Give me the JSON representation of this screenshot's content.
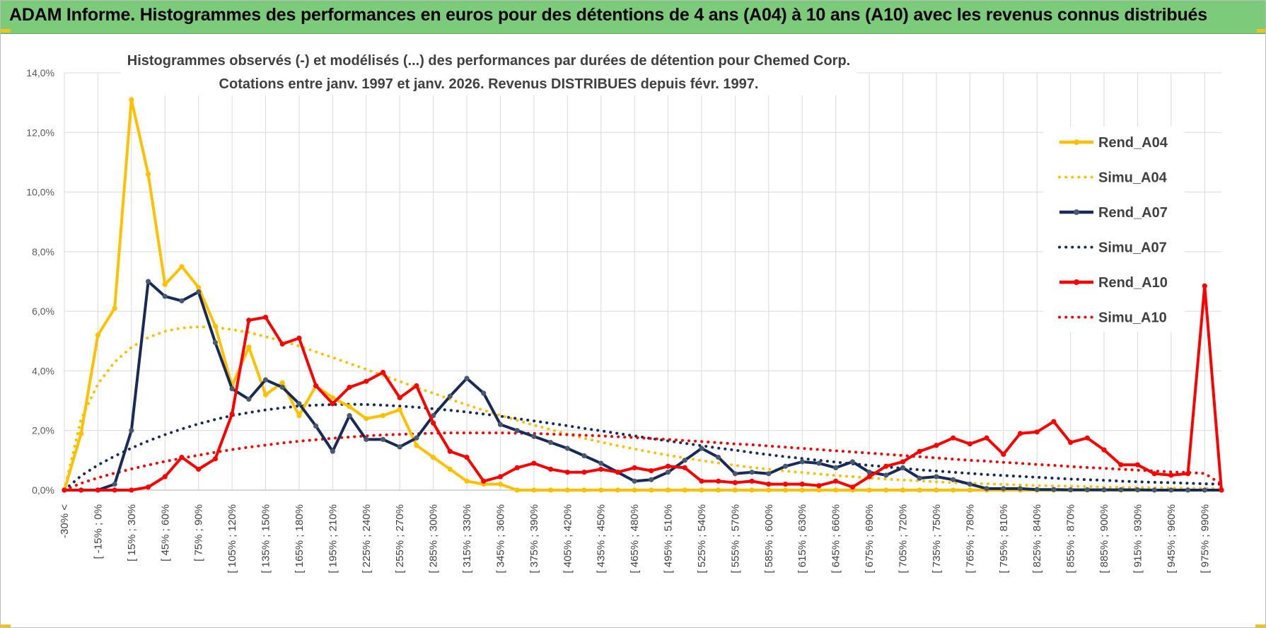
{
  "banner": {
    "title": "ADAM Informe. Histogrammes des performances en euros pour des détentions de 4 ans (A04) à 10 ans (A10) avec les revenus connus distribués"
  },
  "colors": {
    "banner_bg": "#7ccb7a",
    "A04": "#ffc000",
    "A07": "#172b5a",
    "A07_marker": "#4a5a6e",
    "A10": "#ff0000",
    "grid": "#d9d9d9"
  },
  "chart_data": {
    "type": "line",
    "title": "Histogrammes observés (-) et modélisés (...) des performances par durées de détention pour Chemed Corp.",
    "subtitle": "Cotations entre janv. 1997 et janv. 2026. Revenus DISTRIBUES depuis févr. 1997.",
    "xlabel": "",
    "ylabel": "",
    "ylim": [
      0,
      14
    ],
    "yticks": [
      "0,0%",
      "2,0%",
      "4,0%",
      "6,0%",
      "8,0%",
      "10,0%",
      "12,0%",
      "14,0%"
    ],
    "grid": true,
    "legend_position": "right",
    "tick_labels": [
      "-30% <",
      "[ -15% ; 0%",
      "[ 15% ; 30%",
      "[ 45% ; 60%",
      "[ 75% ; 90%",
      "[ 105% ; 120%",
      "[ 135% ; 150%",
      "[ 165% ; 180%",
      "[ 195% ; 210%",
      "[ 225% ; 240%",
      "[ 255% ; 270%",
      "[ 285% ; 300%",
      "[ 315% ; 330%",
      "[ 345% ; 360%",
      "[ 375% ; 390%",
      "[ 405% ; 420%",
      "[ 435% ; 450%",
      "[ 465% ; 480%",
      "[ 495% ; 510%",
      "[ 525% ; 540%",
      "[ 555% ; 570%",
      "[ 585% ; 600%",
      "[ 615% ; 630%",
      "[ 645% ; 660%",
      "[ 675% ; 690%",
      "[ 705% ; 720%",
      "[ 735% ; 750%",
      "[ 765% ; 780%",
      "[ 795% ; 810%",
      "[ 825% ; 840%",
      "[ 855% ; 870%",
      "[ 885% ; 900%",
      "[ 915% ; 930%",
      "[ 945% ; 960%",
      "[ 975% ; 990%"
    ],
    "bins": 70,
    "series": [
      {
        "name": "Rend_A04",
        "style": "solid",
        "color": "#ffc000",
        "markers": true,
        "values": [
          0,
          1.9,
          5.2,
          6.1,
          13.1,
          10.6,
          6.9,
          7.5,
          6.8,
          5.5,
          3.5,
          4.8,
          3.2,
          3.6,
          2.5,
          3.5,
          3.1,
          2.8,
          2.4,
          2.5,
          2.7,
          1.5,
          1.1,
          0.7,
          0.3,
          0.2,
          0.2,
          0,
          0,
          0,
          0,
          0,
          0,
          0,
          0,
          0,
          0,
          0,
          0,
          0,
          0,
          0,
          0,
          0,
          0,
          0,
          0,
          0,
          0,
          0,
          0,
          0,
          0,
          0,
          0,
          0,
          0,
          0,
          0,
          0,
          0,
          0,
          0,
          0,
          0,
          0,
          0,
          0,
          0,
          0
        ]
      },
      {
        "name": "Simu_A04",
        "style": "dotted",
        "color": "#ffc000",
        "values": [
          0,
          2.38,
          3.56,
          4.3,
          4.79,
          5.12,
          5.33,
          5.44,
          5.48,
          5.46,
          5.39,
          5.29,
          5.15,
          5.0,
          4.83,
          4.64,
          4.45,
          4.25,
          4.05,
          3.85,
          3.65,
          3.44,
          3.25,
          3.05,
          2.86,
          2.68,
          2.51,
          2.34,
          2.18,
          2.03,
          1.88,
          1.74,
          1.61,
          1.49,
          1.38,
          1.27,
          1.17,
          1.08,
          0.99,
          0.91,
          0.83,
          0.76,
          0.7,
          0.64,
          0.59,
          0.54,
          0.49,
          0.45,
          0.41,
          0.37,
          0.34,
          0.31,
          0.28,
          0.25,
          0.23,
          0.21,
          0.19,
          0.17,
          0.15,
          0.14,
          0.13,
          0.12,
          0.1,
          0.09,
          0.09,
          0.08,
          0.07,
          0.06,
          0.06,
          0.05
        ]
      },
      {
        "name": "Rend_A07",
        "style": "solid",
        "color": "#172b5a",
        "markers": true,
        "values": [
          0,
          0,
          0,
          0.2,
          2.0,
          7.0,
          6.5,
          6.35,
          6.65,
          4.95,
          3.4,
          3.05,
          3.7,
          3.45,
          2.9,
          2.15,
          1.3,
          2.5,
          1.7,
          1.7,
          1.45,
          1.75,
          2.5,
          3.15,
          3.75,
          3.25,
          2.2,
          2.0,
          1.8,
          1.6,
          1.4,
          1.15,
          0.9,
          0.6,
          0.3,
          0.35,
          0.6,
          1.0,
          1.4,
          1.1,
          0.55,
          0.6,
          0.55,
          0.8,
          0.95,
          0.9,
          0.75,
          0.95,
          0.6,
          0.5,
          0.75,
          0.4,
          0.45,
          0.35,
          0.2,
          0.05,
          0.05,
          0.05,
          0.02,
          0.02,
          0.01,
          0.01,
          0.01,
          0.01,
          0.01,
          0,
          0,
          0,
          0,
          0
        ]
      },
      {
        "name": "Simu_A07",
        "style": "dotted",
        "color": "#172b5a",
        "values": [
          0,
          0.48,
          0.84,
          1.14,
          1.41,
          1.65,
          1.86,
          2.05,
          2.22,
          2.37,
          2.5,
          2.6,
          2.69,
          2.76,
          2.82,
          2.85,
          2.87,
          2.88,
          2.87,
          2.85,
          2.82,
          2.78,
          2.73,
          2.68,
          2.62,
          2.55,
          2.48,
          2.4,
          2.32,
          2.24,
          2.16,
          2.07,
          1.99,
          1.9,
          1.82,
          1.73,
          1.65,
          1.57,
          1.49,
          1.41,
          1.34,
          1.26,
          1.19,
          1.12,
          1.06,
          1.0,
          0.94,
          0.88,
          0.83,
          0.78,
          0.73,
          0.68,
          0.64,
          0.6,
          0.56,
          0.52,
          0.49,
          0.46,
          0.43,
          0.4,
          0.37,
          0.35,
          0.33,
          0.3,
          0.28,
          0.26,
          0.25,
          0.23,
          0.21,
          0.2
        ]
      },
      {
        "name": "Rend_A10",
        "style": "solid",
        "color": "#ff0000",
        "markers": true,
        "values": [
          0,
          0,
          0,
          0,
          0,
          0.1,
          0.45,
          1.1,
          0.7,
          1.05,
          2.55,
          5.7,
          5.8,
          4.9,
          5.1,
          3.5,
          2.9,
          3.45,
          3.65,
          3.95,
          3.1,
          3.5,
          2.25,
          1.3,
          1.1,
          0.3,
          0.45,
          0.75,
          0.9,
          0.7,
          0.6,
          0.6,
          0.7,
          0.6,
          0.75,
          0.65,
          0.8,
          0.75,
          0.3,
          0.3,
          0.25,
          0.3,
          0.2,
          0.2,
          0.2,
          0.15,
          0.3,
          0.1,
          0.45,
          0.8,
          0.95,
          1.3,
          1.5,
          1.75,
          1.55,
          1.75,
          1.2,
          1.9,
          1.95,
          2.3,
          1.6,
          1.75,
          1.35,
          0.85,
          0.85,
          0.55,
          0.5,
          0.55,
          6.85,
          0
        ]
      },
      {
        "name": "Simu_A10",
        "style": "dotted",
        "color": "#ff0000",
        "values": [
          0,
          0.23,
          0.41,
          0.57,
          0.71,
          0.84,
          0.96,
          1.07,
          1.17,
          1.27,
          1.36,
          1.44,
          1.51,
          1.58,
          1.64,
          1.69,
          1.74,
          1.78,
          1.82,
          1.85,
          1.87,
          1.89,
          1.91,
          1.92,
          1.92,
          1.92,
          1.92,
          1.91,
          1.9,
          1.88,
          1.86,
          1.84,
          1.82,
          1.79,
          1.76,
          1.73,
          1.7,
          1.66,
          1.63,
          1.59,
          1.55,
          1.52,
          1.48,
          1.44,
          1.4,
          1.36,
          1.32,
          1.28,
          1.24,
          1.2,
          1.16,
          1.12,
          1.08,
          1.04,
          1.0,
          0.97,
          0.93,
          0.9,
          0.86,
          0.83,
          0.79,
          0.76,
          0.73,
          0.7,
          0.67,
          0.64,
          0.61,
          0.59,
          0.56,
          0.2
        ]
      }
    ]
  }
}
